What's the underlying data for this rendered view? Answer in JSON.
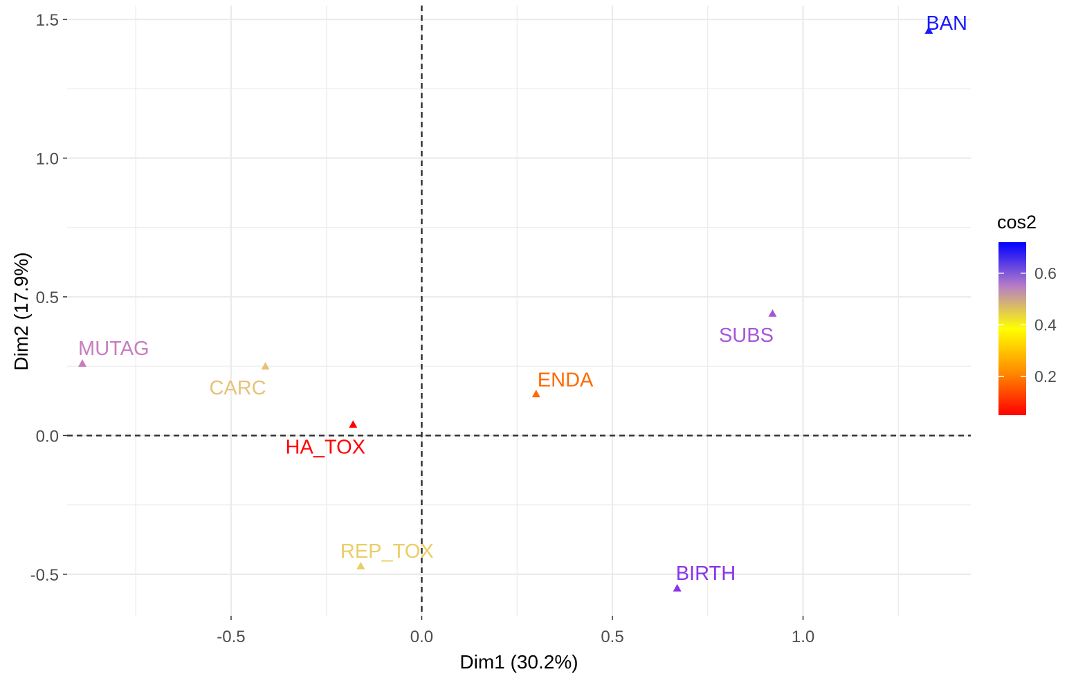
{
  "chart_data": {
    "type": "scatter",
    "xlabel": "Dim1 (30.2%)",
    "ylabel": "Dim2 (17.9%)",
    "xlim": [
      -0.93,
      1.44
    ],
    "ylim": [
      -0.65,
      1.55
    ],
    "x_ticks": [
      -0.5,
      0.0,
      0.5,
      1.0
    ],
    "x_tick_labels": [
      "-0.5",
      "0.0",
      "0.5",
      "1.0"
    ],
    "y_ticks": [
      -0.5,
      0.0,
      0.5,
      1.0,
      1.5
    ],
    "y_tick_labels": [
      "-0.5",
      "0.0",
      "0.5",
      "1.0",
      "1.5"
    ],
    "grid": true,
    "reference_lines": {
      "x": 0,
      "y": 0,
      "style": "dashed"
    },
    "marker": "triangle",
    "points": [
      {
        "label": "BAN",
        "x": 1.33,
        "y": 1.46,
        "cos2": 0.72,
        "color": "#1a1aff"
      },
      {
        "label": "SUBS",
        "x": 0.92,
        "y": 0.44,
        "cos2": 0.58,
        "color": "#a855d8"
      },
      {
        "label": "MUTAG",
        "x": -0.89,
        "y": 0.26,
        "cos2": 0.52,
        "color": "#c77dc0"
      },
      {
        "label": "CARC",
        "x": -0.41,
        "y": 0.25,
        "cos2": 0.42,
        "color": "#e6c277"
      },
      {
        "label": "ENDA",
        "x": 0.3,
        "y": 0.15,
        "cos2": 0.18,
        "color": "#ff6a00"
      },
      {
        "label": "HA_TOX",
        "x": -0.18,
        "y": 0.04,
        "cos2": 0.05,
        "color": "#ff0000"
      },
      {
        "label": "REP_TOX",
        "x": -0.16,
        "y": -0.47,
        "cos2": 0.4,
        "color": "#eccd63"
      },
      {
        "label": "BIRTH",
        "x": 0.67,
        "y": -0.55,
        "cos2": 0.65,
        "color": "#8a33e8"
      }
    ],
    "legend": {
      "title": "cos2",
      "position": "right",
      "range": [
        0.05,
        0.72
      ],
      "ticks": [
        0.2,
        0.4,
        0.6
      ],
      "tick_labels": [
        "0.2",
        "0.4",
        "0.6"
      ],
      "gradient": [
        "#ff0000",
        "#ff8c00",
        "#ffff00",
        "#b57bc9",
        "#0000ff"
      ]
    }
  }
}
